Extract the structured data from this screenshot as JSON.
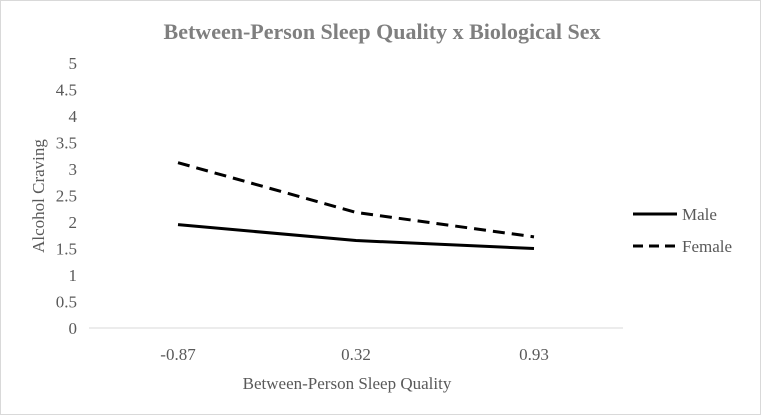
{
  "chart_data": {
    "type": "line",
    "title": "Between-Person Sleep Quality x Biological Sex",
    "xlabel": "Between-Person Sleep Quality",
    "ylabel": "Alcohol Craving",
    "categories": [
      "-0.87",
      "0.32",
      "0.93"
    ],
    "y_ticks": [
      "0",
      "0.5",
      "1",
      "1.5",
      "2",
      "2.5",
      "3",
      "3.5",
      "4",
      "4.5",
      "5"
    ],
    "ylim": [
      0,
      5
    ],
    "grid": false,
    "legend_position": "right",
    "series": [
      {
        "name": "Male",
        "values": [
          1.95,
          1.65,
          1.5
        ],
        "style": "solid",
        "color": "#000000"
      },
      {
        "name": "Female",
        "values": [
          3.12,
          2.18,
          1.72
        ],
        "style": "dashed",
        "color": "#000000"
      }
    ]
  }
}
